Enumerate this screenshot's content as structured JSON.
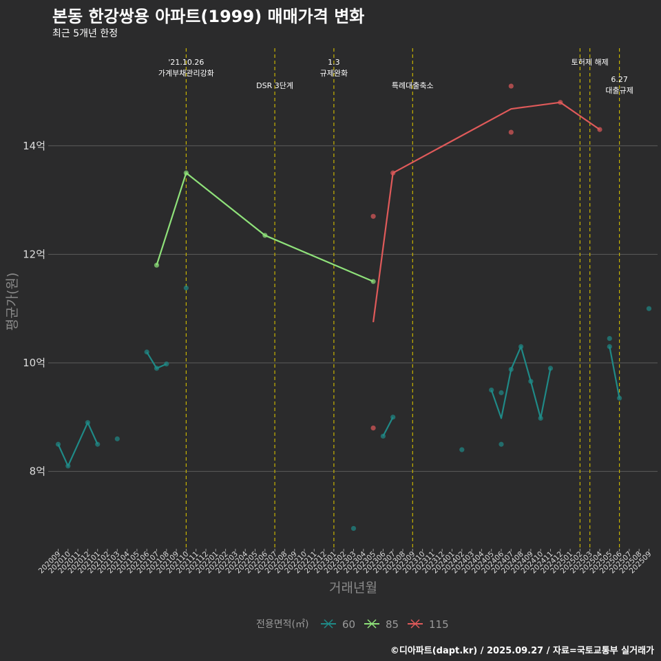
{
  "title": "본동 한강쌍용 아파트(1999) 매매가격 변화",
  "subtitle": "최근 5개년 한정",
  "caption": "©디아파트(dapt.kr) / 2025.09.27 / 자료=국토교통부 실거래가",
  "colors": {
    "background": "#2b2b2c",
    "grid": "#5c5c5c",
    "annotation_line": "#c8b400",
    "s60": "#1f8a87",
    "s85": "#8fe27a",
    "s115": "#e05a5a"
  },
  "chart_data": {
    "type": "line",
    "xlabel": "거래년월",
    "ylabel": "평균가(원)",
    "ylim": [
      6.6,
      15.9
    ],
    "yticks": [
      {
        "value": 8,
        "label": "8억"
      },
      {
        "value": 10,
        "label": "10억"
      },
      {
        "value": 12,
        "label": "12억"
      },
      {
        "value": 14,
        "label": "14억"
      }
    ],
    "categories": [
      "202009",
      "202010",
      "202011",
      "202012",
      "202101",
      "202102",
      "202103",
      "202104",
      "202105",
      "202106",
      "202107",
      "202108",
      "202109",
      "202110",
      "202111",
      "202112",
      "202201",
      "202202",
      "202203",
      "202204",
      "202205",
      "202206",
      "202207",
      "202208",
      "202209",
      "202210",
      "202211",
      "202212",
      "202301",
      "202302",
      "202303",
      "202304",
      "202305",
      "202306",
      "202307",
      "202308",
      "202309",
      "202310",
      "202311",
      "202312",
      "202401",
      "202402",
      "202403",
      "202404",
      "202405",
      "202406",
      "202407",
      "202408",
      "202409",
      "202410",
      "202411",
      "202412",
      "202501",
      "202502",
      "202503",
      "202504",
      "202505",
      "202506",
      "202507",
      "202508",
      "202509"
    ],
    "annotations": [
      {
        "x": 13,
        "label1": "'21.10.26",
        "label2": "가계부채관리강화",
        "row": 1
      },
      {
        "x": 22,
        "label1": "DSR 3단계",
        "label2": "",
        "row": 2
      },
      {
        "x": 28,
        "label1": "1.3",
        "label2": "규제완화",
        "row": 1
      },
      {
        "x": 36,
        "label1": "특례대출축소",
        "label2": "",
        "row": 2
      },
      {
        "x": 53,
        "label1": "",
        "label2": "",
        "row": 0
      },
      {
        "x": 54,
        "label1": "토허제 해제",
        "label2": "",
        "row": 1
      },
      {
        "x": 57,
        "label1": "6.27",
        "label2": "대출규제",
        "row": 3
      }
    ],
    "legend_title": "전용면적(㎡)",
    "series": [
      {
        "name": "60",
        "color": "#1f8a87",
        "line": [
          [
            0,
            8.5
          ],
          [
            1,
            8.1
          ],
          [
            3,
            8.9
          ],
          [
            4,
            8.5
          ],
          [
            9,
            10.2
          ],
          [
            10,
            9.9
          ],
          [
            11,
            9.98
          ],
          [
            33,
            8.65
          ],
          [
            34,
            9.0
          ],
          [
            44,
            9.5
          ],
          [
            45,
            8.98
          ],
          [
            46,
            9.88
          ],
          [
            47,
            10.3
          ],
          [
            48,
            9.66
          ],
          [
            49,
            8.98
          ],
          [
            50,
            9.9
          ],
          [
            56,
            10.3
          ],
          [
            57,
            9.35
          ]
        ],
        "points": [
          [
            0,
            8.5
          ],
          [
            1,
            8.1
          ],
          [
            3,
            8.9
          ],
          [
            4,
            8.5
          ],
          [
            6,
            8.6
          ],
          [
            9,
            10.2
          ],
          [
            10,
            9.9
          ],
          [
            11,
            9.98
          ],
          [
            13,
            11.38
          ],
          [
            30,
            6.95
          ],
          [
            33,
            8.65
          ],
          [
            34,
            9.0
          ],
          [
            41,
            8.4
          ],
          [
            44,
            9.5
          ],
          [
            45,
            9.45
          ],
          [
            45,
            8.5
          ],
          [
            46,
            9.88
          ],
          [
            47,
            10.3
          ],
          [
            48,
            9.66
          ],
          [
            49,
            8.98
          ],
          [
            50,
            9.9
          ],
          [
            56,
            10.45
          ],
          [
            56,
            10.3
          ],
          [
            57,
            9.35
          ],
          [
            60,
            11.0
          ]
        ]
      },
      {
        "name": "85",
        "color": "#8fe27a",
        "line": [
          [
            10,
            11.8
          ],
          [
            13,
            13.5
          ],
          [
            21,
            12.35
          ],
          [
            32,
            11.5
          ]
        ],
        "points": [
          [
            10,
            11.8
          ],
          [
            13,
            13.5
          ],
          [
            21,
            12.35
          ],
          [
            32,
            11.5
          ]
        ]
      },
      {
        "name": "115",
        "color": "#e05a5a",
        "line": [
          [
            32,
            10.75
          ],
          [
            34,
            13.5
          ],
          [
            46,
            14.68
          ],
          [
            51,
            14.8
          ],
          [
            55,
            14.3
          ]
        ],
        "points": [
          [
            32,
            12.7
          ],
          [
            32,
            8.8
          ],
          [
            34,
            13.5
          ],
          [
            46,
            15.1
          ],
          [
            46,
            14.25
          ],
          [
            51,
            14.8
          ],
          [
            55,
            14.3
          ]
        ]
      }
    ]
  }
}
